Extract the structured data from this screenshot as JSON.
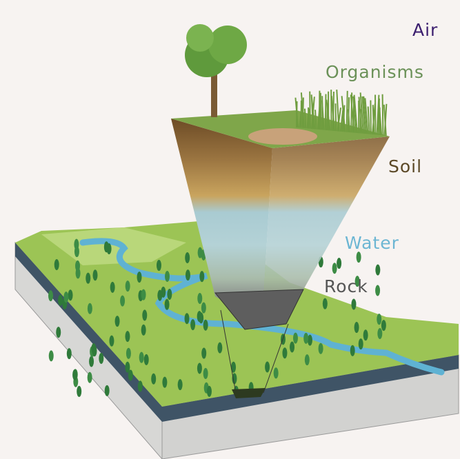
{
  "labels": [
    "Air",
    "Organisms",
    "Soil",
    "Water",
    "Rock"
  ]
}
